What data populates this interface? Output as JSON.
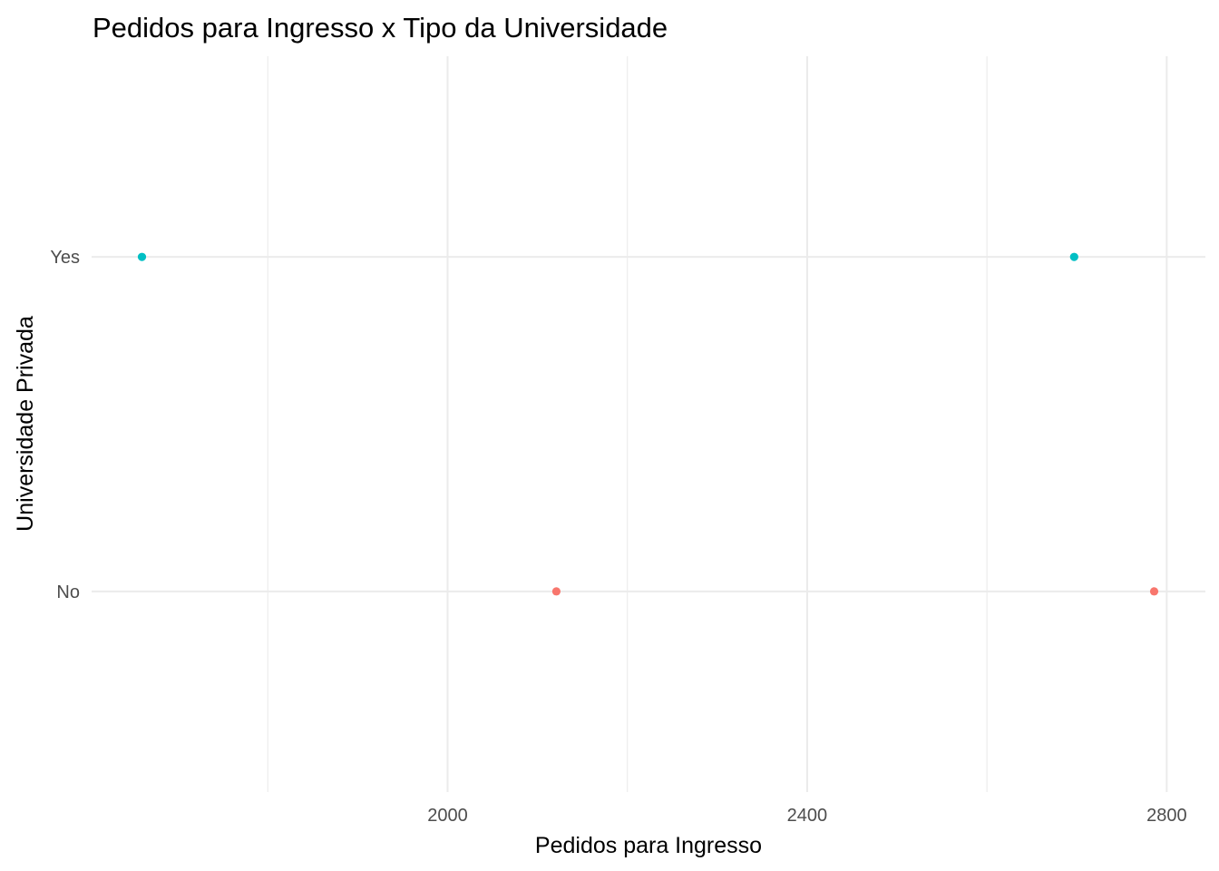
{
  "chart_data": {
    "type": "scatter",
    "title": "Pedidos para Ingresso x Tipo da Universidade",
    "xlabel": "Pedidos para Ingresso",
    "ylabel": "Universidade Privada",
    "x_ticks": [
      2000,
      2400,
      2800
    ],
    "x_minor_ticks": [
      1800,
      2200,
      2600
    ],
    "xlim": [
      1604,
      2843
    ],
    "categories": [
      "No",
      "Yes"
    ],
    "grid": true,
    "legend": "none",
    "series": [
      {
        "category": "Yes",
        "color": "#00BFC4",
        "x": [
          1660,
          2697
        ]
      },
      {
        "category": "No",
        "color": "#F8766D",
        "x": [
          2121,
          2786
        ]
      }
    ]
  }
}
